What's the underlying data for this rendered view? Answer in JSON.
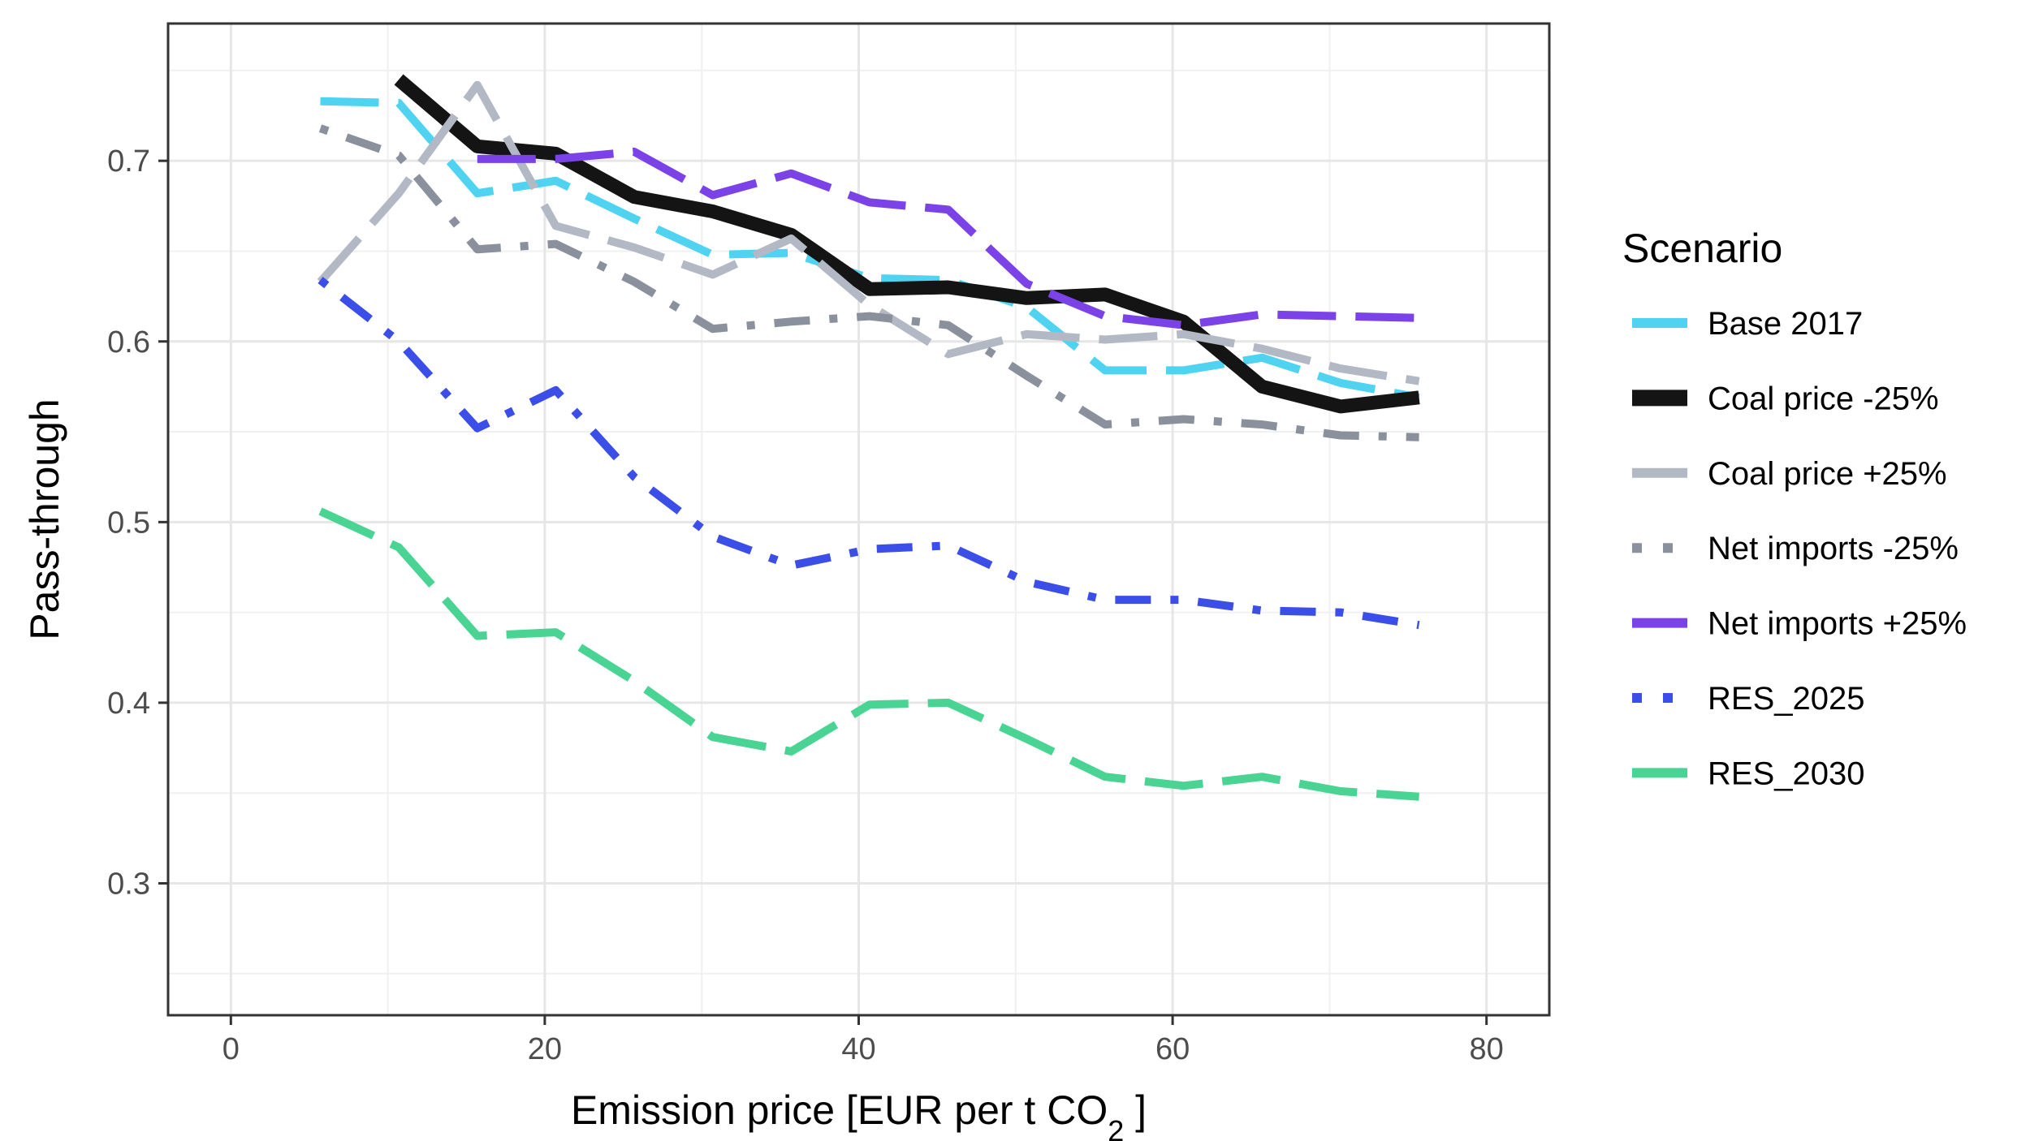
{
  "chart_data": {
    "type": "line",
    "title": "",
    "xlabel": "Emission price [EUR per t CO",
    "xlabel_subscript": "2",
    "xlabel_suffix": " ]",
    "ylabel": "Pass-through",
    "xlim": [
      -4,
      84
    ],
    "ylim": [
      0.227,
      0.776
    ],
    "x_ticks": [
      0,
      20,
      40,
      60,
      80
    ],
    "x_tick_labels": [
      "0",
      "20",
      "40",
      "60",
      "80"
    ],
    "y_ticks": [
      0.3,
      0.4,
      0.5,
      0.6,
      0.7
    ],
    "y_tick_labels": [
      "0.3",
      "0.4",
      "0.5",
      "0.6",
      "0.7"
    ],
    "grid": true,
    "legend": {
      "title": "Scenario",
      "position": "right"
    },
    "series": [
      {
        "name": "Base 2017",
        "color": "#4fd3f0",
        "dash": "longdash",
        "x": [
          5.7,
          10.7,
          15.7,
          20.7,
          25.7,
          30.7,
          35.7,
          40.7,
          45.7,
          50.7,
          55.7,
          60.7,
          65.7,
          70.7,
          75.7
        ],
        "y": [
          0.733,
          0.732,
          0.682,
          0.689,
          0.668,
          0.648,
          0.649,
          0.635,
          0.634,
          0.619,
          0.584,
          0.584,
          0.591,
          0.577,
          0.569
        ]
      },
      {
        "name": "Coal price -25%",
        "color": "#141414",
        "dash": "solid",
        "x": [
          10.7,
          15.7,
          20.7,
          25.7,
          30.7,
          35.7,
          40.7,
          45.7,
          50.7,
          55.7,
          60.7,
          65.7,
          70.7,
          75.7
        ],
        "y": [
          0.745,
          0.708,
          0.704,
          0.68,
          0.672,
          0.659,
          0.629,
          0.63,
          0.624,
          0.626,
          0.611,
          0.575,
          0.564,
          0.569
        ]
      },
      {
        "name": "Coal price +25%",
        "color": "#b2b9c4",
        "dash": "longdash",
        "x": [
          5.7,
          10.7,
          15.7,
          20.7,
          25.7,
          30.7,
          35.7,
          40.7,
          45.7,
          50.7,
          55.7,
          60.7,
          65.7,
          70.7,
          75.7
        ],
        "y": [
          0.633,
          0.682,
          0.742,
          0.664,
          0.652,
          0.637,
          0.657,
          0.62,
          0.593,
          0.604,
          0.601,
          0.604,
          0.596,
          0.585,
          0.578
        ]
      },
      {
        "name": "Net imports -25%",
        "color": "#8a919c",
        "dash": "dotdash",
        "x": [
          5.7,
          10.7,
          15.7,
          20.7,
          25.7,
          30.7,
          35.7,
          40.7,
          45.7,
          50.7,
          55.7,
          60.7,
          65.7,
          70.7,
          75.7
        ],
        "y": [
          0.718,
          0.703,
          0.651,
          0.654,
          0.633,
          0.607,
          0.611,
          0.614,
          0.609,
          0.581,
          0.554,
          0.557,
          0.554,
          0.548,
          0.547
        ]
      },
      {
        "name": "Net imports +25%",
        "color": "#7b42e8",
        "dash": "longdash",
        "x": [
          15.7,
          20.7,
          25.7,
          30.7,
          35.7,
          40.7,
          45.7,
          50.7,
          55.7,
          60.7,
          65.7,
          70.7,
          75.7
        ],
        "y": [
          0.701,
          0.701,
          0.705,
          0.681,
          0.693,
          0.677,
          0.673,
          0.632,
          0.614,
          0.609,
          0.615,
          0.614,
          0.613
        ]
      },
      {
        "name": "RES_2025",
        "color": "#3c4ee8",
        "dash": "dotdash",
        "x": [
          5.7,
          10.7,
          15.7,
          20.7,
          25.7,
          30.7,
          35.7,
          40.7,
          45.7,
          50.7,
          55.7,
          60.7,
          65.7,
          70.7,
          75.7
        ],
        "y": [
          0.634,
          0.6,
          0.552,
          0.573,
          0.525,
          0.492,
          0.476,
          0.485,
          0.487,
          0.467,
          0.457,
          0.457,
          0.451,
          0.45,
          0.443
        ]
      },
      {
        "name": "RES_2030",
        "color": "#4ad494",
        "dash": "longdash",
        "x": [
          5.7,
          10.7,
          15.7,
          20.7,
          25.7,
          30.7,
          35.7,
          40.7,
          45.7,
          50.7,
          55.7,
          60.7,
          65.7,
          70.7,
          75.7
        ],
        "y": [
          0.506,
          0.486,
          0.437,
          0.439,
          0.412,
          0.381,
          0.373,
          0.399,
          0.4,
          0.38,
          0.359,
          0.354,
          0.359,
          0.351,
          0.348
        ]
      }
    ]
  }
}
